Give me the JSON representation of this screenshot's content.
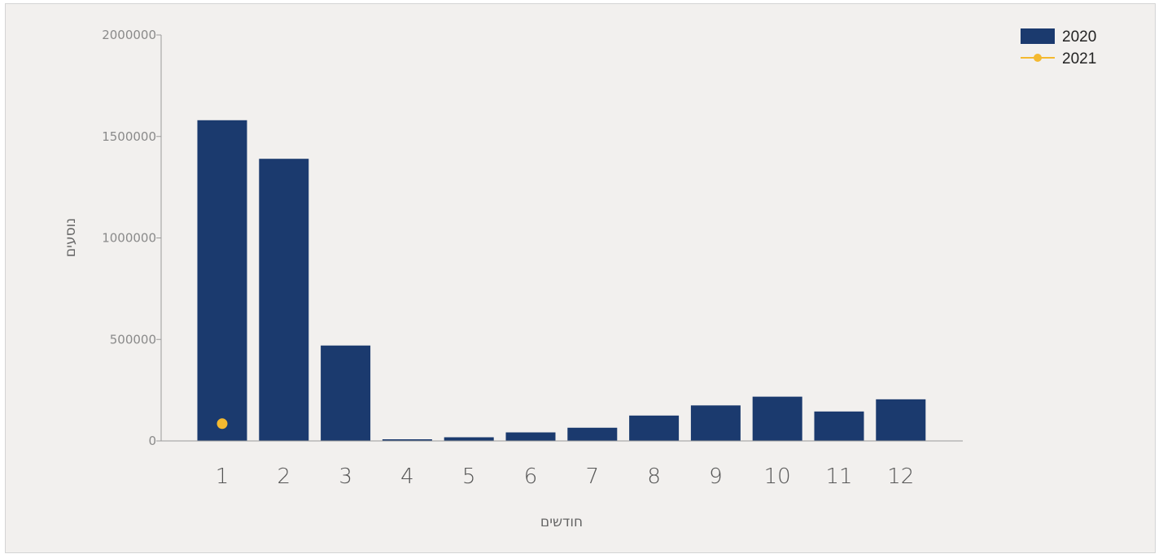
{
  "chart_data": {
    "type": "bar",
    "title": "",
    "xlabel": "חודשים",
    "ylabel": "נוסעים",
    "categories": [
      "1",
      "2",
      "3",
      "4",
      "5",
      "6",
      "7",
      "8",
      "9",
      "10",
      "11",
      "12"
    ],
    "series": [
      {
        "name": "2020",
        "type": "bar",
        "color": "#1b3a6e",
        "values": [
          1580000,
          1390000,
          470000,
          8000,
          18000,
          42000,
          65000,
          125000,
          175000,
          218000,
          145000,
          205000
        ]
      },
      {
        "name": "2021",
        "type": "line",
        "color": "#f4b930",
        "values": [
          85000,
          null,
          null,
          null,
          null,
          null,
          null,
          null,
          null,
          null,
          null,
          null
        ]
      }
    ],
    "ylim": [
      0,
      2000000
    ],
    "yticks": [
      "0",
      "500000",
      "1000000",
      "1500000",
      "2000000"
    ],
    "ytick_values": [
      0,
      500000,
      1000000,
      1500000,
      2000000
    ],
    "grid": false,
    "legend_position": "top-right"
  }
}
